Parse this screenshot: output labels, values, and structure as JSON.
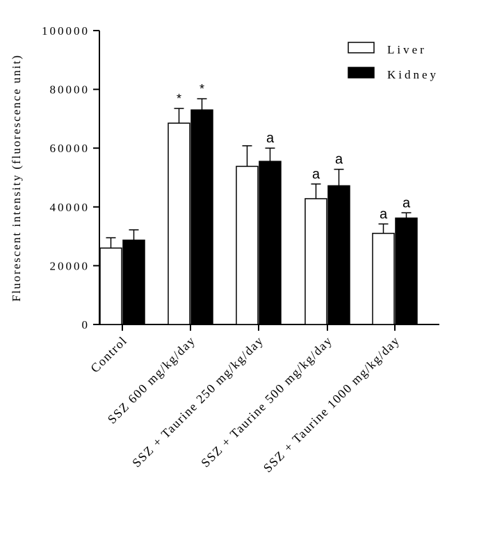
{
  "chart_data": {
    "type": "bar",
    "title": "",
    "ylabel": "Fluorescent intensity (fluorescence unit)",
    "xlabel": "",
    "ylim": [
      0,
      100000
    ],
    "yticks": [
      0,
      20000,
      40000,
      60000,
      80000,
      100000
    ],
    "ytick_labels": [
      "0",
      "20000",
      "40000",
      "60000",
      "80000",
      "100000"
    ],
    "grid": false,
    "legend_position": "top-right",
    "categories": [
      "Control",
      "SSZ 600 mg/kg/day",
      "SSZ + Taurine 250 mg/kg/day",
      "SSZ + Taurine 500 mg/kg/day",
      "SSZ + Taurine 1000 mg/kg/day"
    ],
    "series": [
      {
        "name": "Liver",
        "color": "#ffffff",
        "values": [
          26000,
          68500,
          53800,
          42800,
          31000
        ],
        "errors": [
          3500,
          5000,
          7000,
          5000,
          3200
        ],
        "annotations": [
          "",
          "*",
          "",
          "a",
          "a"
        ]
      },
      {
        "name": "Kidney",
        "color": "#000000",
        "values": [
          28700,
          73000,
          55500,
          47200,
          36200
        ],
        "errors": [
          3500,
          3800,
          4500,
          5600,
          1800
        ],
        "annotations": [
          "",
          "*",
          "a",
          "a",
          "a"
        ]
      }
    ]
  }
}
